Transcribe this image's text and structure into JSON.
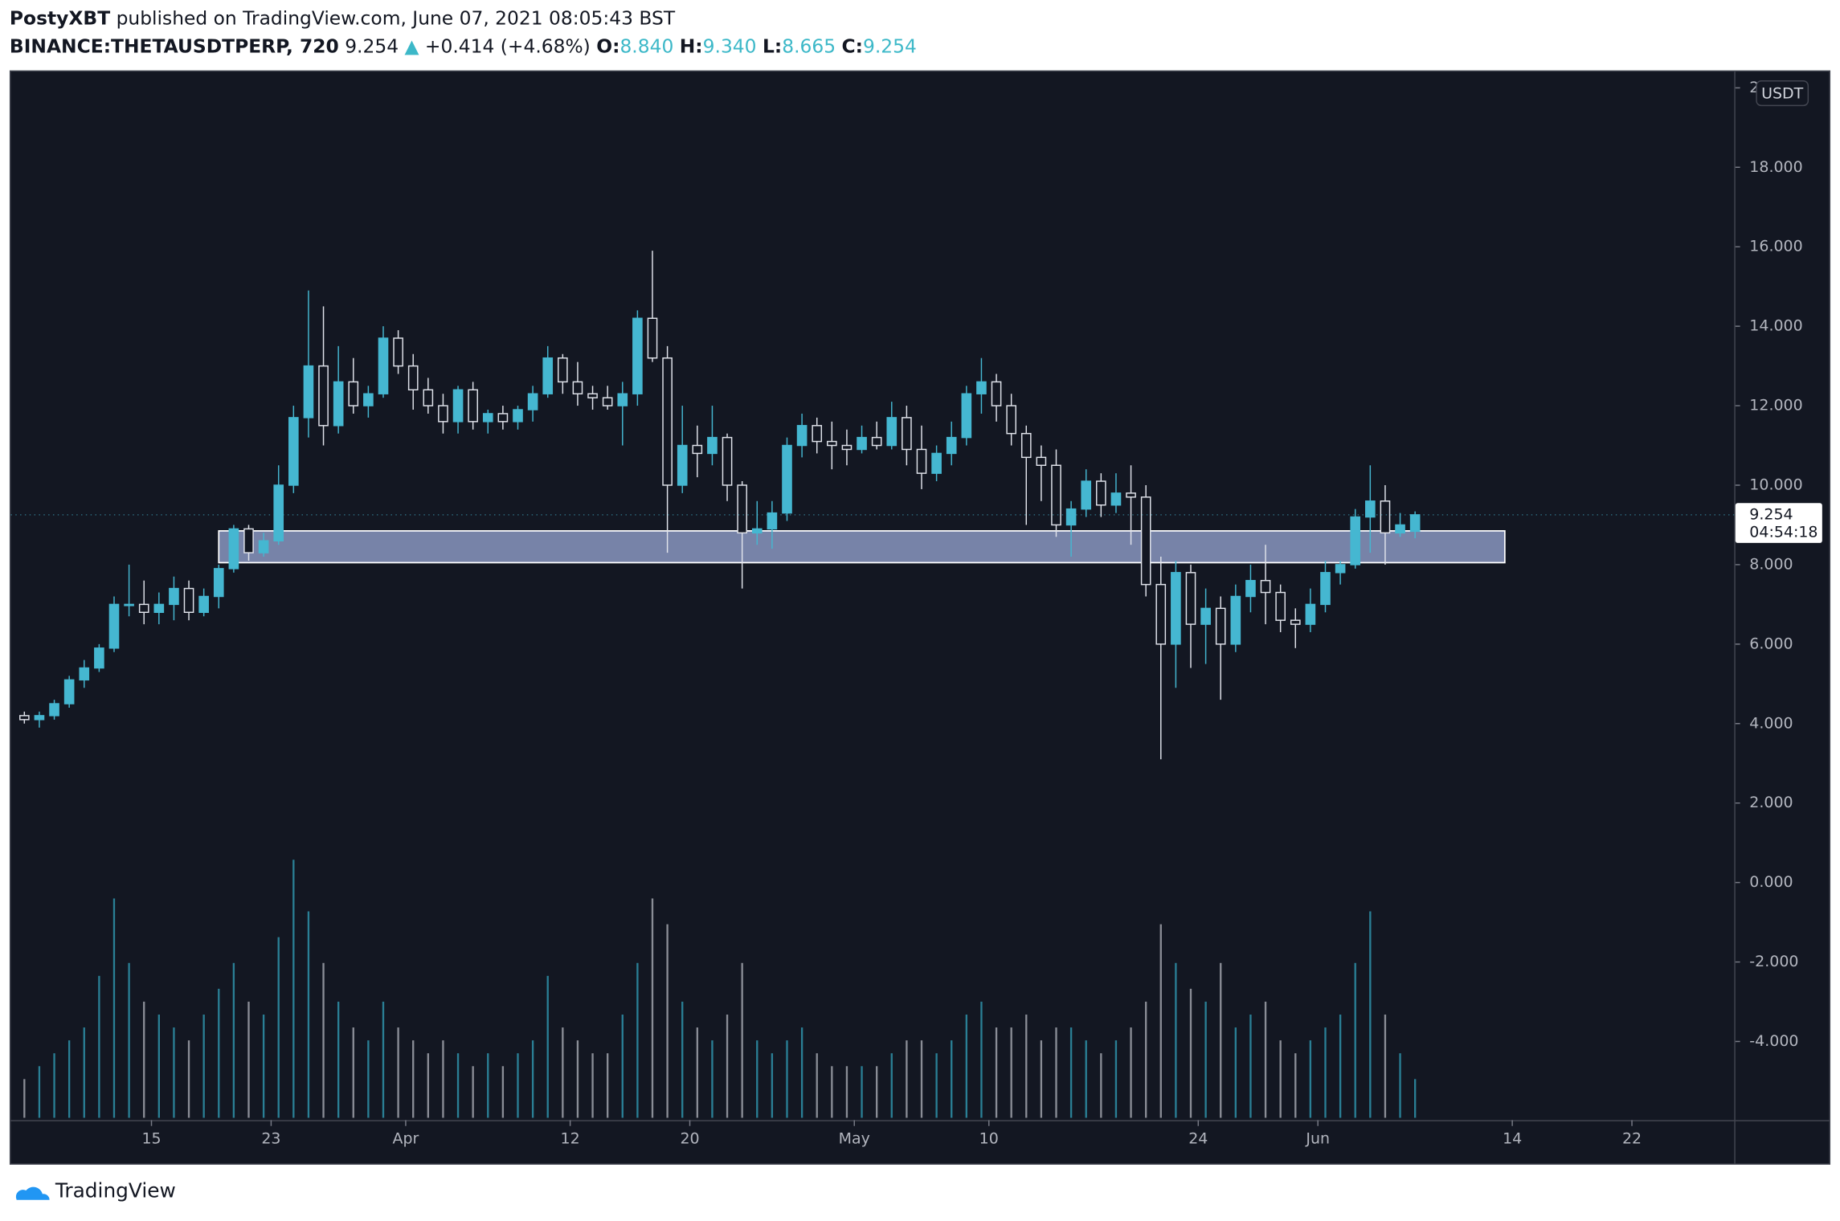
{
  "header": {
    "author": "PostyXBT",
    "published": "published on TradingView.com, June 07, 2021 08:05:43 BST",
    "symbol": "BINANCE:THETAUSDTPERP, 720",
    "last": "9.254",
    "arrow": "▲",
    "change": "+0.414 (+4.68%)",
    "o_label": "O:",
    "o": "8.840",
    "h_label": "H:",
    "h": "9.340",
    "l_label": "L:",
    "l": "8.665",
    "c_label": "C:",
    "c": "9.254"
  },
  "chart_data": {
    "type": "candlestick",
    "currency": "USDT",
    "price_label": "9.254",
    "countdown": "04:54:18",
    "up_color": "#45b7d1",
    "down_color": "#e0e3eb",
    "info_color": "#3cb8c8",
    "x": [
      "2021-03-06",
      "2021-03-07",
      "2021-03-08",
      "2021-03-09",
      "2021-03-10",
      "2021-03-11",
      "2021-03-12",
      "2021-03-13",
      "2021-03-14",
      "2021-03-15",
      "2021-03-16",
      "2021-03-17",
      "2021-03-18",
      "2021-03-19",
      "2021-03-20",
      "2021-03-21",
      "2021-03-22",
      "2021-03-23",
      "2021-03-24",
      "2021-03-25",
      "2021-03-26",
      "2021-03-27",
      "2021-03-28",
      "2021-03-29",
      "2021-03-30",
      "2021-03-31",
      "2021-04-01",
      "2021-04-02",
      "2021-04-03",
      "2021-04-04",
      "2021-04-05",
      "2021-04-06",
      "2021-04-07",
      "2021-04-08",
      "2021-04-09",
      "2021-04-10",
      "2021-04-11",
      "2021-04-12",
      "2021-04-13",
      "2021-04-14",
      "2021-04-15",
      "2021-04-16",
      "2021-04-17",
      "2021-04-18",
      "2021-04-19",
      "2021-04-20",
      "2021-04-21",
      "2021-04-22",
      "2021-04-23",
      "2021-04-24",
      "2021-04-25",
      "2021-04-26",
      "2021-04-27",
      "2021-04-28",
      "2021-04-29",
      "2021-04-30",
      "2021-05-01",
      "2021-05-02",
      "2021-05-03",
      "2021-05-04",
      "2021-05-05",
      "2021-05-06",
      "2021-05-07",
      "2021-05-08",
      "2021-05-09",
      "2021-05-10",
      "2021-05-11",
      "2021-05-12",
      "2021-05-13",
      "2021-05-14",
      "2021-05-15",
      "2021-05-16",
      "2021-05-17",
      "2021-05-18",
      "2021-05-19",
      "2021-05-20",
      "2021-05-21",
      "2021-05-22",
      "2021-05-23",
      "2021-05-24",
      "2021-05-25",
      "2021-05-26",
      "2021-05-27",
      "2021-05-28",
      "2021-05-29",
      "2021-05-30",
      "2021-05-31",
      "2021-06-01",
      "2021-06-02",
      "2021-06-03",
      "2021-06-04",
      "2021-06-05",
      "2021-06-06",
      "2021-06-07"
    ],
    "open": [
      4.2,
      4.1,
      4.2,
      4.5,
      5.1,
      5.4,
      5.9,
      7.0,
      7.0,
      6.8,
      7.0,
      7.4,
      6.8,
      7.2,
      7.9,
      8.9,
      8.3,
      8.6,
      10.0,
      11.7,
      13.0,
      11.5,
      12.6,
      12.0,
      12.3,
      13.7,
      13.0,
      12.4,
      12.0,
      11.6,
      12.4,
      11.6,
      11.8,
      11.6,
      11.9,
      12.3,
      13.2,
      12.6,
      12.3,
      12.2,
      12.0,
      12.3,
      14.2,
      13.2,
      10.0,
      11.0,
      10.8,
      11.2,
      10.0,
      8.8,
      8.9,
      9.3,
      11.0,
      11.5,
      11.1,
      11.0,
      10.9,
      11.2,
      11.0,
      11.7,
      10.9,
      10.3,
      10.8,
      11.2,
      12.3,
      12.6,
      12.0,
      11.3,
      10.7,
      10.5,
      9.0,
      9.4,
      10.1,
      9.5,
      9.8,
      9.7,
      7.5,
      6.0,
      7.8,
      6.5,
      6.9,
      6.0,
      7.2,
      7.6,
      7.3,
      6.6,
      6.5,
      7.0,
      7.8,
      8.0,
      9.2,
      9.6,
      8.8,
      8.84
    ],
    "high": [
      4.3,
      4.3,
      4.6,
      5.2,
      5.6,
      6.0,
      7.2,
      8.0,
      7.6,
      7.3,
      7.7,
      7.6,
      7.4,
      8.0,
      9.0,
      9.0,
      8.8,
      10.5,
      12.0,
      14.9,
      14.5,
      13.5,
      13.2,
      12.5,
      14.0,
      13.9,
      13.3,
      12.7,
      12.3,
      12.5,
      12.6,
      11.9,
      12.0,
      12.0,
      12.5,
      13.5,
      13.3,
      13.1,
      12.5,
      12.5,
      12.6,
      14.4,
      15.9,
      13.5,
      12.0,
      11.5,
      12.0,
      11.3,
      10.1,
      9.6,
      9.6,
      11.2,
      11.8,
      11.7,
      11.6,
      11.4,
      11.5,
      11.6,
      12.1,
      12.0,
      11.5,
      11.0,
      11.6,
      12.5,
      13.2,
      12.8,
      12.3,
      11.5,
      11.0,
      10.9,
      9.6,
      10.4,
      10.3,
      10.3,
      10.5,
      10.0,
      8.2,
      8.1,
      8.0,
      7.4,
      7.2,
      7.5,
      8.0,
      8.5,
      7.5,
      6.9,
      7.4,
      8.1,
      8.1,
      9.4,
      10.5,
      10.0,
      9.3,
      9.34
    ],
    "low": [
      4.0,
      3.9,
      4.1,
      4.4,
      4.9,
      5.3,
      5.8,
      6.7,
      6.5,
      6.5,
      6.6,
      6.6,
      6.7,
      6.9,
      7.8,
      8.1,
      8.2,
      8.5,
      9.8,
      11.2,
      11.0,
      11.3,
      11.8,
      11.7,
      12.2,
      12.8,
      11.9,
      11.8,
      11.3,
      11.3,
      11.4,
      11.3,
      11.4,
      11.4,
      11.6,
      12.2,
      12.3,
      12.0,
      11.9,
      11.9,
      11.0,
      12.0,
      13.1,
      8.3,
      9.8,
      10.2,
      10.5,
      9.6,
      7.4,
      8.5,
      8.4,
      9.1,
      10.7,
      10.8,
      10.4,
      10.5,
      10.8,
      10.9,
      10.9,
      10.5,
      9.9,
      10.1,
      10.5,
      11.0,
      11.8,
      11.6,
      11.0,
      9.0,
      9.6,
      8.7,
      8.2,
      9.2,
      9.2,
      9.3,
      8.5,
      7.2,
      3.1,
      4.9,
      5.4,
      5.5,
      4.6,
      5.8,
      6.8,
      6.5,
      6.3,
      5.9,
      6.3,
      6.8,
      7.5,
      7.9,
      8.3,
      8.0,
      8.7,
      8.665
    ],
    "close": [
      4.1,
      4.2,
      4.5,
      5.1,
      5.4,
      5.9,
      7.0,
      7.0,
      6.8,
      7.0,
      7.4,
      6.8,
      7.2,
      7.9,
      8.9,
      8.3,
      8.6,
      10.0,
      11.7,
      13.0,
      11.5,
      12.6,
      12.0,
      12.3,
      13.7,
      13.0,
      12.4,
      12.0,
      11.6,
      12.4,
      11.6,
      11.8,
      11.6,
      11.9,
      12.3,
      13.2,
      12.6,
      12.3,
      12.2,
      12.0,
      12.3,
      14.2,
      13.2,
      10.0,
      11.0,
      10.8,
      11.2,
      10.0,
      8.8,
      8.9,
      9.3,
      11.0,
      11.5,
      11.1,
      11.0,
      10.9,
      11.2,
      11.0,
      11.7,
      10.9,
      10.3,
      10.8,
      11.2,
      12.3,
      12.6,
      12.0,
      11.3,
      10.7,
      10.5,
      9.0,
      9.4,
      10.1,
      9.5,
      9.8,
      9.7,
      7.5,
      6.0,
      7.8,
      6.5,
      6.9,
      6.0,
      7.2,
      7.6,
      7.3,
      6.6,
      6.5,
      7.0,
      7.8,
      8.0,
      9.2,
      9.6,
      8.8,
      9.0,
      9.254
    ],
    "volume": [
      15,
      20,
      25,
      30,
      35,
      55,
      85,
      60,
      45,
      40,
      35,
      30,
      40,
      50,
      60,
      45,
      40,
      70,
      100,
      80,
      60,
      45,
      35,
      30,
      45,
      35,
      30,
      25,
      30,
      25,
      20,
      25,
      20,
      25,
      30,
      55,
      35,
      30,
      25,
      25,
      40,
      60,
      85,
      75,
      45,
      35,
      30,
      40,
      60,
      30,
      25,
      30,
      35,
      25,
      20,
      20,
      20,
      20,
      25,
      30,
      30,
      25,
      30,
      40,
      45,
      35,
      35,
      40,
      30,
      35,
      35,
      30,
      25,
      30,
      35,
      45,
      75,
      60,
      50,
      45,
      60,
      35,
      40,
      45,
      30,
      25,
      30,
      35,
      40,
      60,
      80,
      40,
      25,
      15
    ],
    "zone": {
      "x": [
        "2021-03-19T12:00",
        "2021-06-13T12:00"
      ],
      "y": [
        8.05,
        8.85
      ]
    },
    "xlim": [
      "2021-03-05T14:10",
      "2021-06-28T20:10"
    ],
    "xticks": [
      {
        "value": "2021-03-15",
        "label": "15"
      },
      {
        "value": "2021-03-23",
        "label": "23"
      },
      {
        "value": "2021-04-01",
        "label": "Apr"
      },
      {
        "value": "2021-04-12",
        "label": "12"
      },
      {
        "value": "2021-04-20",
        "label": "20"
      },
      {
        "value": "2021-05-01",
        "label": "May"
      },
      {
        "value": "2021-05-10",
        "label": "10"
      },
      {
        "value": "2021-05-24",
        "label": "24"
      },
      {
        "value": "2021-06-01",
        "label": "Jun"
      },
      {
        "value": "2021-06-14",
        "label": "14"
      },
      {
        "value": "2021-06-22",
        "label": "22"
      }
    ],
    "ylim": [
      -5.98,
      20.41
    ],
    "yticks": [
      {
        "value": -4,
        "label": "-4.000"
      },
      {
        "value": -2,
        "label": "-2.000"
      },
      {
        "value": 0,
        "label": "0.000"
      },
      {
        "value": 2,
        "label": "2.000"
      },
      {
        "value": 4,
        "label": "4.000"
      },
      {
        "value": 6,
        "label": "6.000"
      },
      {
        "value": 8,
        "label": "8.000"
      },
      {
        "value": 10,
        "label": "10.000"
      },
      {
        "value": 12,
        "label": "12.000"
      },
      {
        "value": 14,
        "label": "14.000"
      },
      {
        "value": 16,
        "label": "16.000"
      },
      {
        "value": 18,
        "label": "18.000"
      },
      {
        "value": 20,
        "label": "20.000"
      }
    ]
  },
  "footer": {
    "brand": "TradingView"
  }
}
